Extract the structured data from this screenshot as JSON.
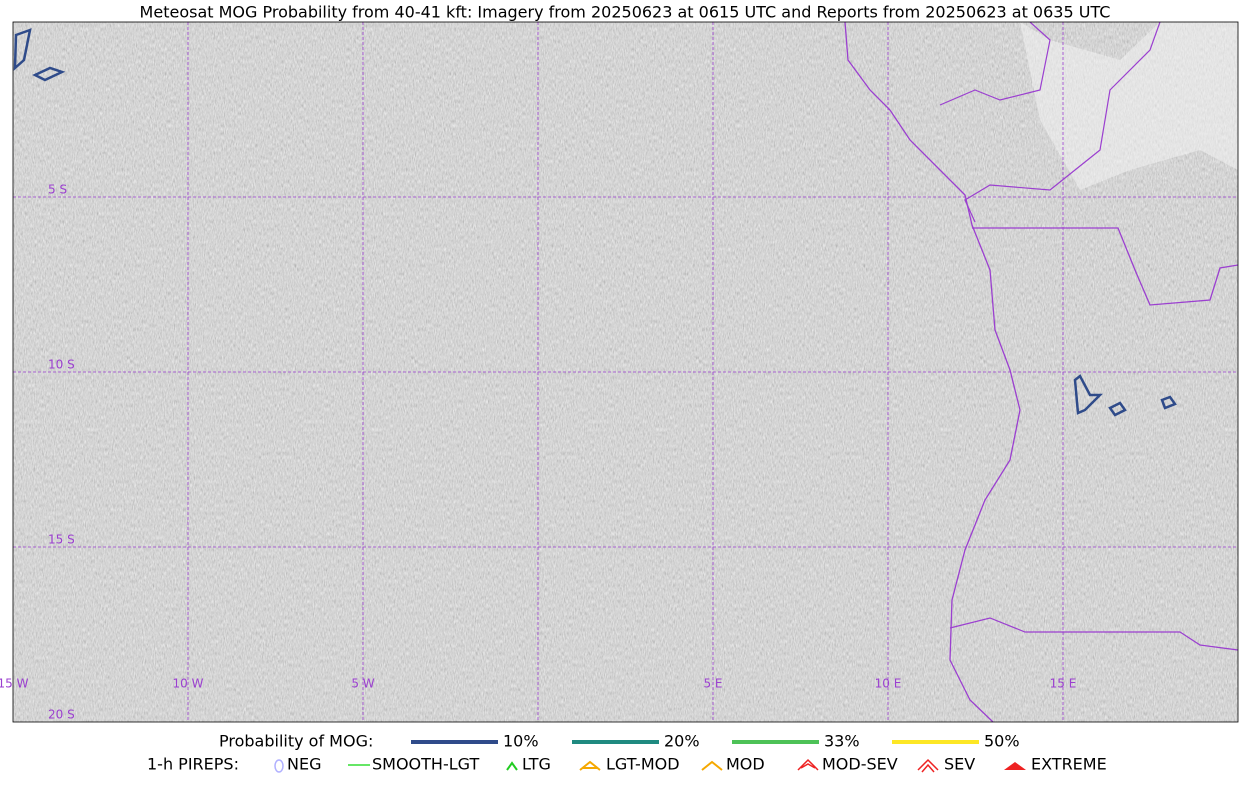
{
  "title": "Meteosat MOG Probability from 40-41 kft: Imagery from 20250623 at 0615 UTC and Reports from 20250623 at 0635 UTC",
  "map": {
    "lat_labels": [
      "5 S",
      "10 S",
      "15 S",
      "20 S"
    ],
    "lon_labels": [
      "15 W",
      "10 W",
      "5 W",
      "5 E",
      "10 E",
      "15 E"
    ]
  },
  "legend": {
    "probability": {
      "label": "Probability of MOG:",
      "items": [
        {
          "label": "10%",
          "color": "#2f4b8a"
        },
        {
          "label": "20%",
          "color": "#1f8a80"
        },
        {
          "label": "33%",
          "color": "#4dc257"
        },
        {
          "label": "50%",
          "color": "#fde725"
        }
      ]
    },
    "pireps": {
      "label": "1-h PIREPS:",
      "items": [
        "NEG",
        "SMOOTH-LGT",
        "LTG",
        "LGT-MOD",
        "MOD",
        "MOD-SEV",
        "SEV",
        "EXTREME"
      ]
    }
  }
}
